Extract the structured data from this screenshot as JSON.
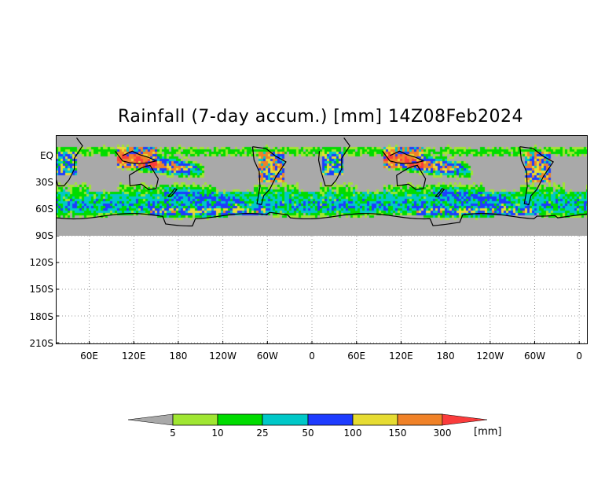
{
  "title": "Rainfall (7-day accum.) [mm] 14Z08Feb2024",
  "y_axis": {
    "labels": [
      "EQ",
      "30S",
      "60S",
      "90S",
      "120S",
      "150S",
      "180S",
      "210S"
    ],
    "values": [
      0,
      -30,
      -60,
      -90,
      -120,
      -150,
      -180,
      -210
    ]
  },
  "x_axis": {
    "labels": [
      "60E",
      "120E",
      "180",
      "120W",
      "60W",
      "0",
      "60E",
      "120E",
      "180",
      "120W",
      "60W",
      "0"
    ],
    "values": [
      60,
      120,
      180,
      240,
      300,
      360,
      420,
      480,
      540,
      600,
      660,
      720
    ]
  },
  "colorbar": {
    "levels": [
      "5",
      "10",
      "25",
      "50",
      "100",
      "150",
      "300"
    ],
    "unit": "[mm]",
    "colors": [
      "#a9a9a9",
      "#a0e632",
      "#00dc00",
      "#00c8c8",
      "#1e3cff",
      "#e6dc32",
      "#f08228",
      "#fa3c3c"
    ]
  },
  "map_colors": {
    "no_rain": "#a9a9a9",
    "coastline": "#000000"
  }
}
